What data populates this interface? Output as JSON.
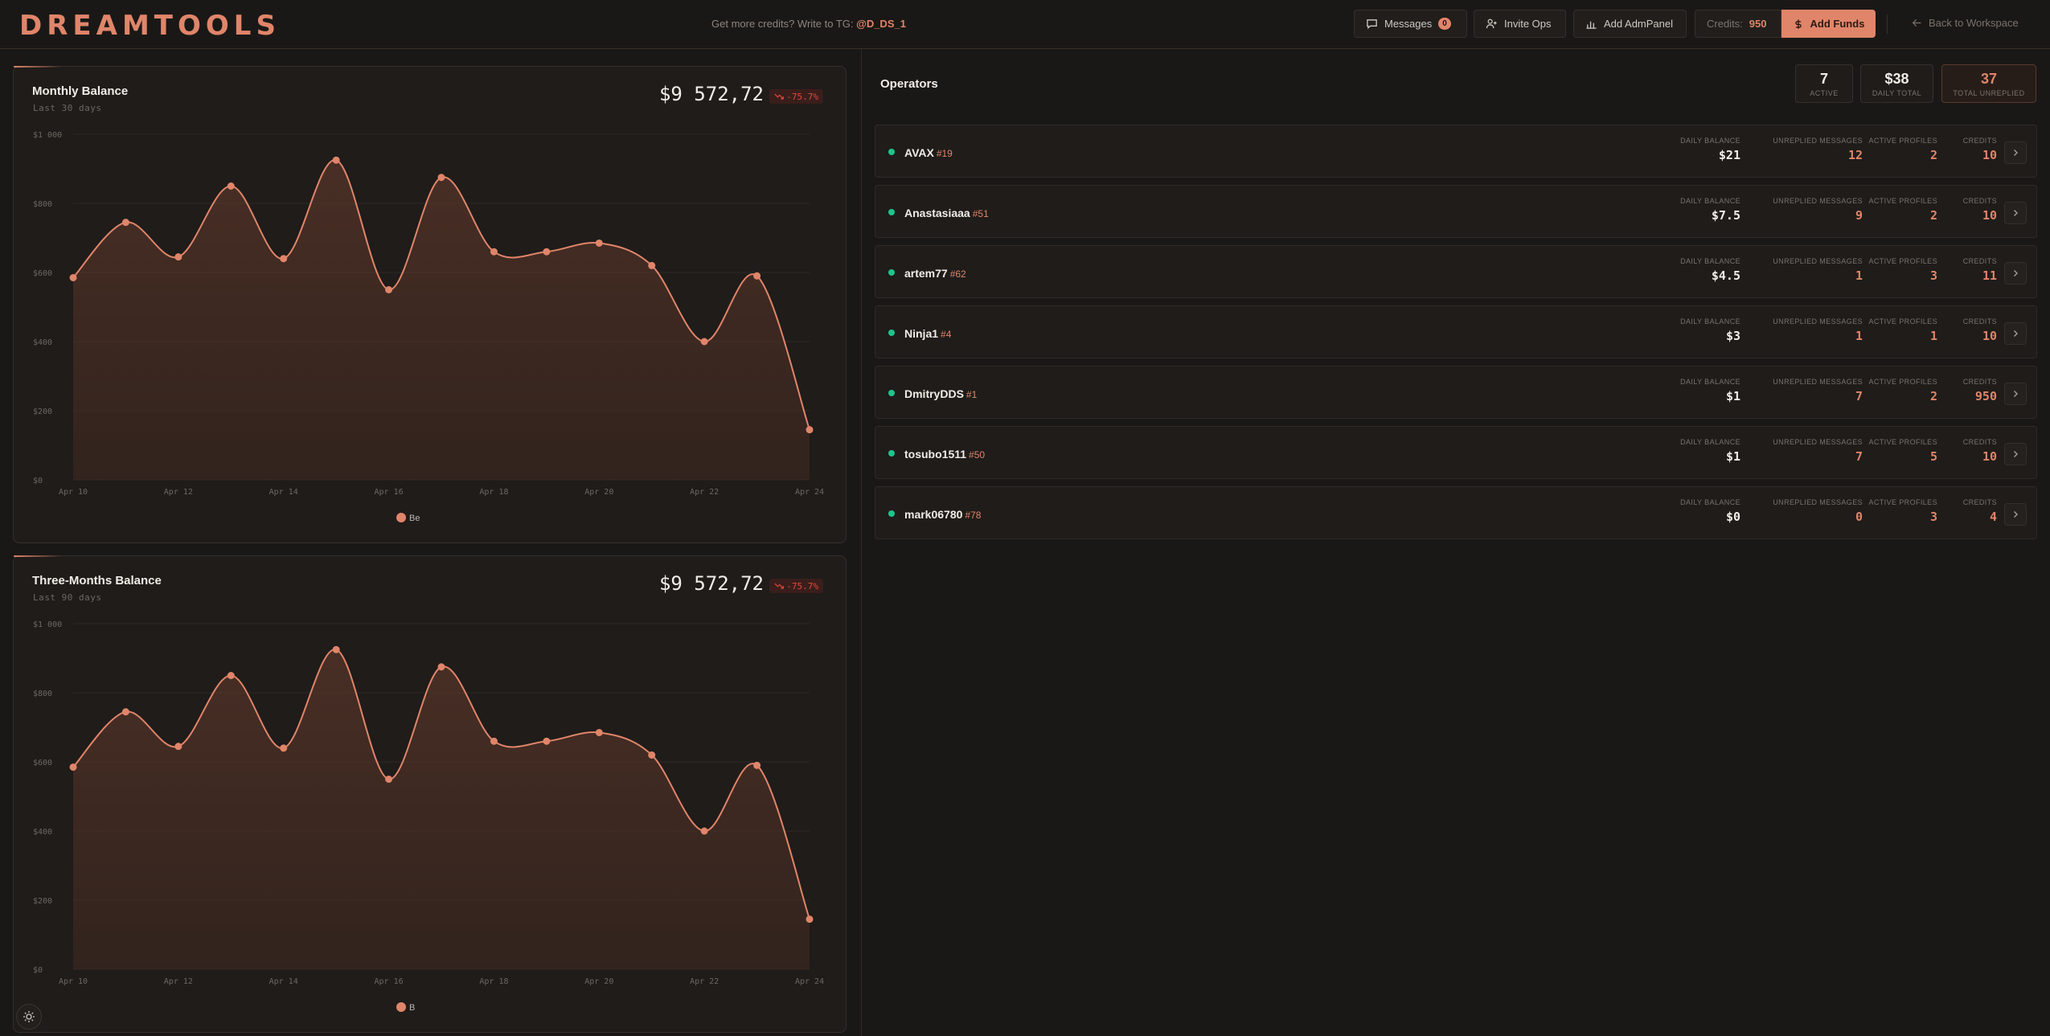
{
  "header": {
    "logo": "DREAMTOOLS",
    "promo_text": "Get more credits? Write to TG:",
    "promo_handle": "@D_DS_1",
    "messages_label": "Messages",
    "messages_count": "0",
    "invite_label": "Invite Ops",
    "admpanel_label": "Add AdmPanel",
    "credits_label": "Credits:",
    "credits_value": "950",
    "add_funds_label": "Add Funds",
    "back_label": "Back to Workspace"
  },
  "cards": [
    {
      "title": "Monthly Balance",
      "subtitle": "Last 30 days",
      "total": "$9 572,72",
      "delta": "-75.7%",
      "legend": "Be"
    },
    {
      "title": "Three-Months Balance",
      "subtitle": "Last 90 days",
      "total": "$9 572,72",
      "delta": "-75.7%",
      "legend": "B"
    }
  ],
  "chart_data": [
    {
      "type": "area",
      "x": [
        "Apr 10",
        "Apr 11",
        "Apr 12",
        "Apr 13",
        "Apr 14",
        "Apr 15",
        "Apr 16",
        "Apr 17",
        "Apr 18",
        "Apr 19",
        "Apr 20",
        "Apr 21",
        "Apr 22",
        "Apr 23",
        "Apr 24"
      ],
      "xticks": [
        "Apr 10",
        "Apr 12",
        "Apr 14",
        "Apr 16",
        "Apr 18",
        "Apr 20",
        "Apr 22",
        "Apr 24"
      ],
      "yticks": [
        "$0",
        "$200",
        "$400",
        "$600",
        "$800",
        "$1 000"
      ],
      "values": [
        585,
        745,
        645,
        850,
        640,
        925,
        550,
        875,
        660,
        660,
        685,
        620,
        400,
        590,
        145
      ],
      "ylim": [
        0,
        1000
      ],
      "grid": true,
      "legend": "bottom",
      "color": "#e0856a"
    },
    {
      "type": "area",
      "x": [
        "Apr 10",
        "Apr 11",
        "Apr 12",
        "Apr 13",
        "Apr 14",
        "Apr 15",
        "Apr 16",
        "Apr 17",
        "Apr 18",
        "Apr 19",
        "Apr 20",
        "Apr 21",
        "Apr 22",
        "Apr 23",
        "Apr 24"
      ],
      "xticks": [
        "Apr 10",
        "Apr 12",
        "Apr 14",
        "Apr 16",
        "Apr 18",
        "Apr 20",
        "Apr 22",
        "Apr 24"
      ],
      "yticks": [
        "$0",
        "$200",
        "$400",
        "$600",
        "$800",
        "$1 000"
      ],
      "values": [
        585,
        745,
        645,
        850,
        640,
        925,
        550,
        875,
        660,
        660,
        685,
        620,
        400,
        590,
        145
      ],
      "ylim": [
        0,
        1000
      ],
      "grid": true,
      "legend": "bottom",
      "color": "#e0856a"
    }
  ],
  "operators": {
    "title": "Operators",
    "stats": [
      {
        "value": "7",
        "label": "ACTIVE"
      },
      {
        "value": "$38",
        "label": "DAILY TOTAL"
      },
      {
        "value": "37",
        "label": "TOTAL UNREPLIED"
      }
    ],
    "metric_labels": [
      "DAILY BALANCE",
      "UNREPLIED MESSAGES",
      "ACTIVE PROFILES",
      "CREDITS"
    ],
    "rows": [
      {
        "name": "AVAX",
        "id": "#19",
        "daily": "$21",
        "unreplied": "12",
        "profiles": "2",
        "credits": "10"
      },
      {
        "name": "Anastasiaaa",
        "id": "#51",
        "daily": "$7.5",
        "unreplied": "9",
        "profiles": "2",
        "credits": "10"
      },
      {
        "name": "artem77",
        "id": "#62",
        "daily": "$4.5",
        "unreplied": "1",
        "profiles": "3",
        "credits": "11"
      },
      {
        "name": "Ninja1",
        "id": "#4",
        "daily": "$3",
        "unreplied": "1",
        "profiles": "1",
        "credits": "10"
      },
      {
        "name": "DmitryDDS",
        "id": "#1",
        "daily": "$1",
        "unreplied": "7",
        "profiles": "2",
        "credits": "950"
      },
      {
        "name": "tosubo1511",
        "id": "#50",
        "daily": "$1",
        "unreplied": "7",
        "profiles": "5",
        "credits": "10"
      },
      {
        "name": "mark06780",
        "id": "#78",
        "daily": "$0",
        "unreplied": "0",
        "profiles": "3",
        "credits": "4"
      }
    ]
  },
  "icons": {
    "messages": "chat-bubble-icon",
    "invite": "user-plus-icon",
    "admpanel": "bar-chart-icon",
    "add_funds": "dollar-icon",
    "back": "arrow-left-icon",
    "delta": "trending-down-icon",
    "row_open": "chevron-right-icon",
    "theme": "sun-icon"
  }
}
